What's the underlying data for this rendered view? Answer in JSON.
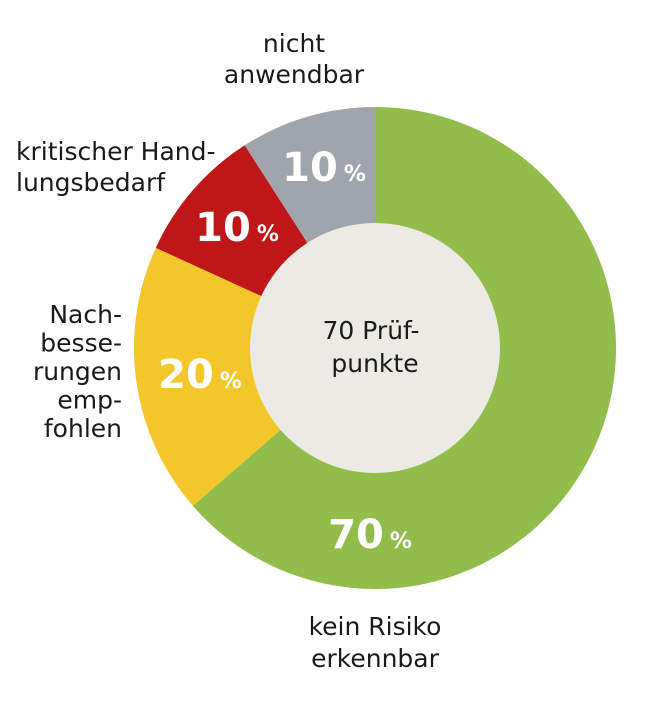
{
  "chart_data": {
    "type": "pie",
    "center_label": [
      "70 Prüf-",
      "punkte"
    ],
    "percent_sign": "%",
    "slices": [
      {
        "label_lines": [
          "kein Risiko",
          "erkennbar"
        ],
        "value": 70,
        "display": "70",
        "color": "#93bd4a"
      },
      {
        "label_lines": [
          "Nach-",
          "besse-",
          "rungen",
          "emp-",
          "fohlen"
        ],
        "value": 20,
        "display": "20",
        "color": "#f3c72a"
      },
      {
        "label_lines": [
          "kritischer Hand-",
          "lungsbedarf"
        ],
        "value": 10,
        "display": "10",
        "color": "#bf1717"
      },
      {
        "label_lines": [
          "nicht",
          "anwendbar"
        ],
        "value": 10,
        "display": "10",
        "color": "#9fa5ab"
      }
    ],
    "center_color": "#ebeae5"
  }
}
